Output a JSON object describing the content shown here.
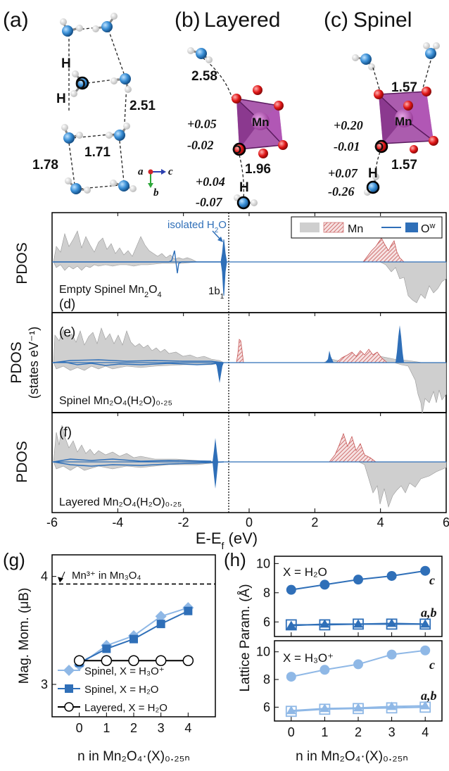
{
  "structures": {
    "a": {
      "label": "(a)",
      "atoms": {
        "h": "H",
        "o": "O"
      },
      "distances": [
        "2.51",
        "1.78",
        "1.71"
      ],
      "axes": {
        "a": "a",
        "b": "b",
        "c": "c"
      }
    },
    "b": {
      "label": "(b)",
      "title": "Layered",
      "distances": [
        "2.58",
        "1.96"
      ],
      "charges": [
        "+0.05",
        "-0.02",
        "+0.04",
        "-0.07"
      ],
      "atoms": {
        "mn": "Mn",
        "o": "O",
        "h": "H"
      }
    },
    "c": {
      "label": "(c)",
      "title": "Spinel",
      "distances": [
        "1.57",
        "1.57"
      ],
      "charges": [
        "+0.20",
        "-0.01",
        "+0.07",
        "-0.26"
      ],
      "atoms": {
        "mn": "Mn",
        "o": "O",
        "h": "H"
      }
    }
  },
  "pdos": {
    "ylabel": "PDOS",
    "ylabel_units": "(states eV⁻¹)",
    "xlabel": "E-E",
    "xlabel_sub": "f",
    "xlabel_unit": " (eV)",
    "xticks": [
      "-6",
      "-4",
      "-2",
      "0",
      "2",
      "4",
      "6"
    ],
    "legend": {
      "mn": "Mn",
      "ow": "O",
      "ow_sup": "w"
    },
    "colors": {
      "total": "#c8c8c8",
      "mn": "#cc5555",
      "ow": "#2f6fb8"
    },
    "d": {
      "label": "(d)",
      "system": "Empty Spinel Mn",
      "system_tail": "2",
      "system_end": "O",
      "system_end_sub": "4",
      "annot_isolated": "isolated H",
      "annot_isolated_sub": "2",
      "annot_isolated_end": "O",
      "annot_orbital": "1b",
      "annot_orbital_sub": "1"
    },
    "e": {
      "label": "(e)",
      "system": "Spinel Mn₂O₄(H₂O)₀.₂₅"
    },
    "f": {
      "label": "(f)",
      "system": "Layered Mn₂O₄(H₂O)₀.₂₅"
    }
  },
  "chart_data": [
    {
      "type": "line",
      "panel": "(g)",
      "xlabel": "n in Mn₂O₄·(X)₀.₂₅ₙ",
      "ylabel": "Mag. Mom. (μB)",
      "x": [
        0,
        1,
        2,
        3,
        4
      ],
      "xlim": [
        -1,
        5
      ],
      "ylim": [
        2.7,
        4.2
      ],
      "yticks": [
        3,
        4
      ],
      "reference": {
        "label": "Mn³⁺ in Mn₃O₄",
        "value": 3.93
      },
      "series": [
        {
          "name": "Spinel, X = H₃O⁺",
          "marker": "diamond",
          "color": "#8fb8e6",
          "values": [
            3.18,
            3.36,
            3.45,
            3.63,
            3.71
          ]
        },
        {
          "name": "Spinel, X = H₂O",
          "marker": "square",
          "color": "#2f6fb8",
          "values": [
            3.2,
            3.33,
            3.42,
            3.56,
            3.68
          ]
        },
        {
          "name": "Layered, X = H₂O",
          "marker": "open-circle",
          "color": "#000000",
          "values": [
            3.22,
            3.22,
            3.22,
            3.22,
            3.22
          ]
        }
      ]
    },
    {
      "type": "line",
      "panel": "(h)",
      "subplot": "top",
      "title": "X = H₂O",
      "xlabel": "n in Mn₂O₄·(X)₀.₂₅ₙ",
      "ylabel": "Lattice Param. (Å)",
      "x": [
        0,
        1,
        2,
        3,
        4
      ],
      "ylim": [
        5,
        10.5
      ],
      "yticks": [
        6,
        8,
        10
      ],
      "series": [
        {
          "name": "c",
          "marker": "circle",
          "color": "#2f6fb8",
          "values": [
            8.2,
            8.55,
            8.9,
            9.15,
            9.5
          ]
        },
        {
          "name": "a,b",
          "marker": "triangle",
          "color": "#2f6fb8",
          "values": [
            5.75,
            5.85,
            5.85,
            5.9,
            5.85
          ]
        },
        {
          "name": "a,b",
          "marker": "open-square",
          "color": "#2f6fb8",
          "values": [
            5.8,
            5.8,
            5.85,
            5.85,
            5.85
          ]
        }
      ]
    },
    {
      "type": "line",
      "panel": "(h)",
      "subplot": "bottom",
      "title": "X = H₃O⁺",
      "xlabel": "n in Mn₂O₄·(X)₀.₂₅ₙ",
      "ylabel": "Lattice Param. (Å)",
      "x": [
        0,
        1,
        2,
        3,
        4
      ],
      "ylim": [
        5,
        10.8
      ],
      "yticks": [
        6,
        8,
        10
      ],
      "series": [
        {
          "name": "c",
          "marker": "circle",
          "color": "#8fb8e6",
          "values": [
            8.2,
            8.7,
            9.1,
            9.8,
            10.1
          ]
        },
        {
          "name": "a,b",
          "marker": "triangle",
          "color": "#8fb8e6",
          "values": [
            5.75,
            5.9,
            5.95,
            6.05,
            6.1
          ]
        },
        {
          "name": "a,b",
          "marker": "open-square",
          "color": "#8fb8e6",
          "values": [
            5.7,
            5.85,
            5.9,
            5.95,
            6.0
          ]
        }
      ]
    }
  ]
}
